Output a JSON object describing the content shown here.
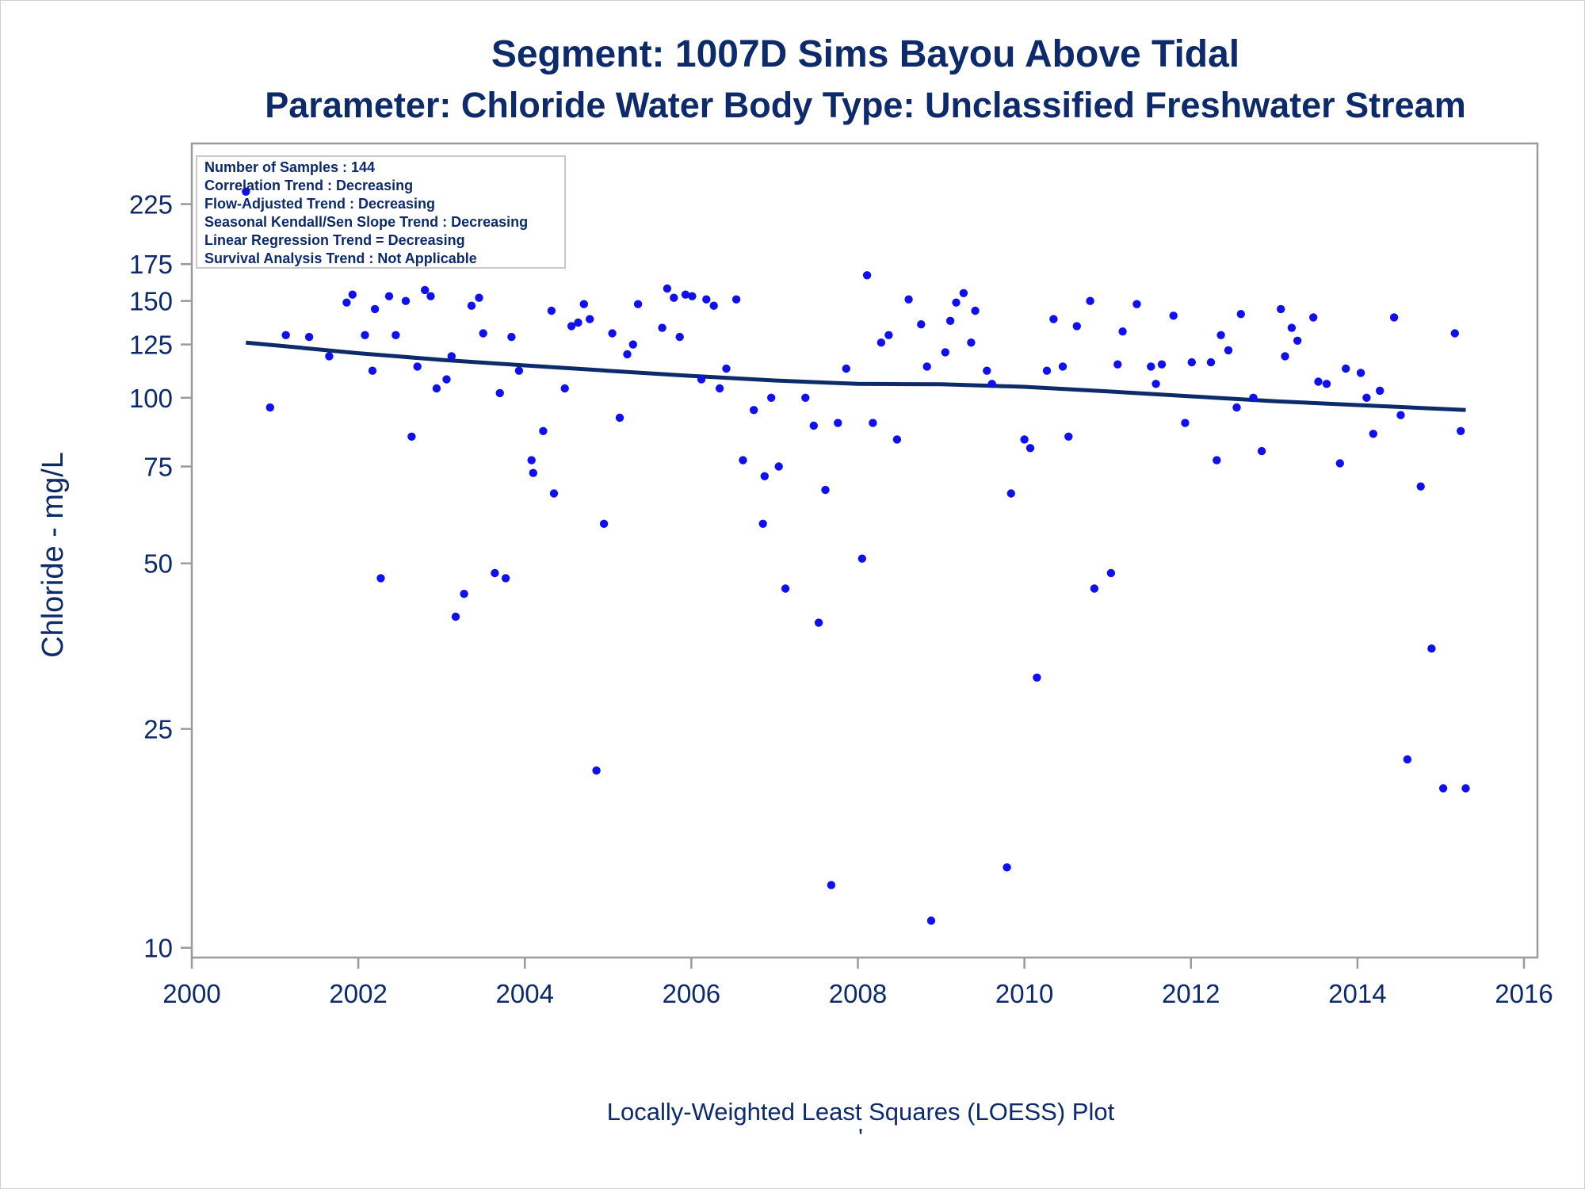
{
  "chart_data": {
    "type": "scatter",
    "title": "Segment: 1007D  Sims Bayou Above Tidal",
    "subtitle": "Parameter: Chloride   Water Body Type: Unclassified Freshwater Stream",
    "xlabel": "",
    "ylabel": "Chloride - mg/L",
    "footnote": "Locally-Weighted Least Squares (LOESS) Plot",
    "footnote_mark": "'",
    "y_scale": "log",
    "xlim": [
      2000,
      2016
    ],
    "ylim": [
      9.6,
      290
    ],
    "x_ticks": [
      2000,
      2002,
      2004,
      2006,
      2008,
      2010,
      2012,
      2014,
      2016
    ],
    "y_ticks": [
      10,
      25,
      50,
      75,
      100,
      125,
      150,
      175,
      225
    ],
    "grid": false,
    "legend": {
      "placement": "top-left",
      "lines": [
        "Number of Samples : 144",
        "Correlation Trend : Decreasing",
        "Flow-Adjusted Trend : Decreasing",
        "Seasonal Kendall/Sen Slope Trend : Decreasing",
        "Linear Regression Trend = Decreasing",
        "Survival Analysis Trend : Not Applicable"
      ]
    },
    "colors": {
      "points": "#1010ee",
      "line": "#0d2a6b",
      "text": "#0d2a6b",
      "axis": "#9a9a9a"
    },
    "series": [
      {
        "type": "scatter",
        "points": [
          [
            2000.65,
            237
          ],
          [
            2000.94,
            96
          ],
          [
            2001.13,
            130
          ],
          [
            2001.41,
            129
          ],
          [
            2001.65,
            119
          ],
          [
            2001.86,
            149
          ],
          [
            2001.93,
            154
          ],
          [
            2002.08,
            130
          ],
          [
            2002.17,
            112
          ],
          [
            2002.2,
            145
          ],
          [
            2002.27,
            47
          ],
          [
            2002.37,
            153
          ],
          [
            2002.45,
            130
          ],
          [
            2002.57,
            150
          ],
          [
            2002.64,
            85
          ],
          [
            2002.71,
            114
          ],
          [
            2002.8,
            157
          ],
          [
            2002.87,
            153
          ],
          [
            2002.94,
            104
          ],
          [
            2003.06,
            108
          ],
          [
            2003.12,
            119
          ],
          [
            2003.17,
            40
          ],
          [
            2003.27,
            44
          ],
          [
            2003.36,
            147
          ],
          [
            2003.45,
            152
          ],
          [
            2003.5,
            131
          ],
          [
            2003.64,
            48
          ],
          [
            2003.7,
            102
          ],
          [
            2003.77,
            47
          ],
          [
            2003.84,
            129
          ],
          [
            2003.93,
            112
          ],
          [
            2004.08,
            77
          ],
          [
            2004.1,
            73
          ],
          [
            2004.22,
            87
          ],
          [
            2004.32,
            144
          ],
          [
            2004.35,
            67
          ],
          [
            2004.48,
            104
          ],
          [
            2004.56,
            135
          ],
          [
            2004.64,
            137
          ],
          [
            2004.71,
            148
          ],
          [
            2004.78,
            139
          ],
          [
            2004.86,
            21
          ],
          [
            2004.95,
            59
          ],
          [
            2005.05,
            131
          ],
          [
            2005.14,
            92
          ],
          [
            2005.23,
            120
          ],
          [
            2005.3,
            125
          ],
          [
            2005.36,
            148
          ],
          [
            2005.65,
            134
          ],
          [
            2005.71,
            158
          ],
          [
            2005.79,
            152
          ],
          [
            2005.86,
            129
          ],
          [
            2005.93,
            154
          ],
          [
            2006.01,
            153
          ],
          [
            2006.12,
            108
          ],
          [
            2006.18,
            151
          ],
          [
            2006.27,
            147
          ],
          [
            2006.34,
            104
          ],
          [
            2006.42,
            113
          ],
          [
            2006.54,
            151
          ],
          [
            2006.62,
            77
          ],
          [
            2006.75,
            95
          ],
          [
            2006.86,
            59
          ],
          [
            2006.88,
            72
          ],
          [
            2006.96,
            100
          ],
          [
            2007.05,
            75
          ],
          [
            2007.13,
            45
          ],
          [
            2007.37,
            100
          ],
          [
            2007.47,
            89
          ],
          [
            2007.53,
            39
          ],
          [
            2007.61,
            68
          ],
          [
            2007.68,
            13
          ],
          [
            2007.76,
            90
          ],
          [
            2007.86,
            113
          ],
          [
            2008.05,
            51
          ],
          [
            2008.11,
            167
          ],
          [
            2008.18,
            90
          ],
          [
            2008.28,
            126
          ],
          [
            2008.37,
            130
          ],
          [
            2008.47,
            84
          ],
          [
            2008.61,
            151
          ],
          [
            2008.76,
            136
          ],
          [
            2008.83,
            114
          ],
          [
            2008.88,
            11.2
          ],
          [
            2009.05,
            121
          ],
          [
            2009.11,
            138
          ],
          [
            2009.18,
            149
          ],
          [
            2009.27,
            155
          ],
          [
            2009.36,
            126
          ],
          [
            2009.41,
            144
          ],
          [
            2009.55,
            112
          ],
          [
            2009.61,
            106
          ],
          [
            2009.79,
            14
          ],
          [
            2009.84,
            67
          ],
          [
            2010.0,
            84
          ],
          [
            2010.07,
            81
          ],
          [
            2010.15,
            31
          ],
          [
            2010.27,
            112
          ],
          [
            2010.35,
            139
          ],
          [
            2010.46,
            114
          ],
          [
            2010.53,
            85
          ],
          [
            2010.63,
            135
          ],
          [
            2010.79,
            150
          ],
          [
            2010.84,
            45
          ],
          [
            2011.04,
            48
          ],
          [
            2011.12,
            115
          ],
          [
            2011.18,
            132
          ],
          [
            2011.35,
            148
          ],
          [
            2011.52,
            114
          ],
          [
            2011.58,
            106
          ],
          [
            2011.65,
            115
          ],
          [
            2011.79,
            141
          ],
          [
            2011.93,
            90
          ],
          [
            2012.01,
            116
          ],
          [
            2012.24,
            116
          ],
          [
            2012.31,
            77
          ],
          [
            2012.36,
            130
          ],
          [
            2012.45,
            122
          ],
          [
            2012.55,
            96
          ],
          [
            2012.6,
            142
          ],
          [
            2012.75,
            100
          ],
          [
            2012.85,
            80
          ],
          [
            2013.08,
            145
          ],
          [
            2013.13,
            119
          ],
          [
            2013.21,
            134
          ],
          [
            2013.28,
            127
          ],
          [
            2013.47,
            140
          ],
          [
            2013.53,
            107
          ],
          [
            2013.63,
            106
          ],
          [
            2013.79,
            76
          ],
          [
            2013.86,
            113
          ],
          [
            2014.04,
            111
          ],
          [
            2014.11,
            100
          ],
          [
            2014.19,
            86
          ],
          [
            2014.27,
            103
          ],
          [
            2014.44,
            140
          ],
          [
            2014.52,
            93
          ],
          [
            2014.6,
            22
          ],
          [
            2014.76,
            69
          ],
          [
            2014.89,
            35
          ],
          [
            2015.03,
            19.5
          ],
          [
            2015.17,
            131
          ],
          [
            2015.24,
            87
          ],
          [
            2015.3,
            19.5
          ]
        ]
      },
      {
        "type": "line",
        "points": [
          [
            2000.65,
            126
          ],
          [
            2001.0,
            124.6
          ],
          [
            2002.0,
            120.5
          ],
          [
            2003.0,
            117.2
          ],
          [
            2004.0,
            114.5
          ],
          [
            2005.0,
            112.0
          ],
          [
            2006.0,
            109.6
          ],
          [
            2007.0,
            107.5
          ],
          [
            2008.0,
            106.0
          ],
          [
            2009.0,
            105.8
          ],
          [
            2010.0,
            104.7
          ],
          [
            2011.0,
            102.7
          ],
          [
            2012.0,
            100.6
          ],
          [
            2013.0,
            98.6
          ],
          [
            2014.0,
            97.0
          ],
          [
            2015.3,
            95.0
          ]
        ]
      }
    ]
  }
}
